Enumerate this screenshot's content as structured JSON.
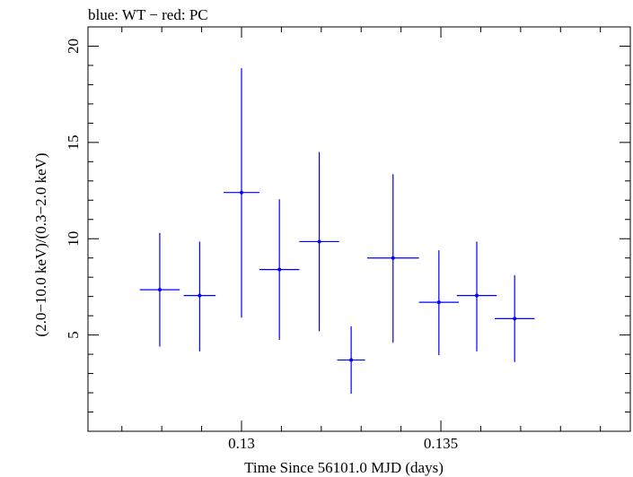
{
  "chart_data": {
    "type": "scatter",
    "title": "blue: WT − red: PC",
    "xlabel": "Time Since 56101.0 MJD (days)",
    "ylabel": "(2.0−10.0 keV)/(0.3−2.0 keV)",
    "xlim": [
      0.12615,
      0.13975
    ],
    "ylim": [
      0,
      21
    ],
    "x_ticks": [
      0.13,
      0.135
    ],
    "x_tick_labels": [
      "0.13",
      "0.135"
    ],
    "y_ticks": [
      5,
      10,
      15,
      20
    ],
    "y_tick_labels": [
      "5",
      "10",
      "15",
      "20"
    ],
    "grid": false,
    "legend": "none",
    "series": [
      {
        "color": "#0000ff",
        "points": [
          {
            "x": 0.12795,
            "xerr": 0.0005,
            "y": 7.35,
            "ylo": 4.4,
            "yhi": 10.3
          },
          {
            "x": 0.12895,
            "xerr": 0.0004,
            "y": 7.05,
            "ylo": 4.15,
            "yhi": 9.85
          },
          {
            "x": 0.13,
            "xerr": 0.00045,
            "y": 12.4,
            "ylo": 5.9,
            "yhi": 18.85
          },
          {
            "x": 0.13095,
            "xerr": 0.0005,
            "y": 8.4,
            "ylo": 4.75,
            "yhi": 12.05
          },
          {
            "x": 0.13195,
            "xerr": 0.0005,
            "y": 9.85,
            "ylo": 5.2,
            "yhi": 14.5
          },
          {
            "x": 0.13275,
            "xerr": 0.00035,
            "y": 3.7,
            "ylo": 1.95,
            "yhi": 5.45
          },
          {
            "x": 0.1338,
            "xerr": 0.00065,
            "y": 9.0,
            "ylo": 4.6,
            "yhi": 13.35
          },
          {
            "x": 0.13495,
            "xerr": 0.0005,
            "y": 6.7,
            "ylo": 3.95,
            "yhi": 9.4
          },
          {
            "x": 0.1359,
            "xerr": 0.0005,
            "y": 7.05,
            "ylo": 4.15,
            "yhi": 9.85
          },
          {
            "x": 0.13685,
            "xerr": 0.0005,
            "y": 5.85,
            "ylo": 3.6,
            "yhi": 8.1
          }
        ]
      }
    ]
  }
}
